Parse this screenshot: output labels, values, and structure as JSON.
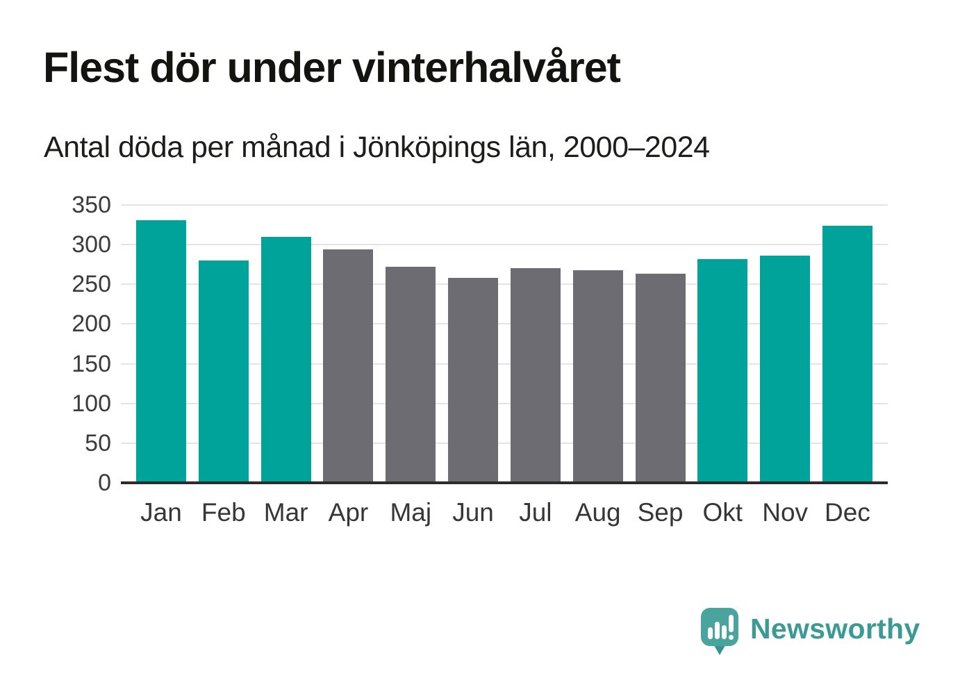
{
  "header": {
    "title": "Flest dör under vinterhalvåret",
    "subtitle": "Antal döda per månad i Jönköpings län, 2000–2024"
  },
  "chart_data": {
    "type": "bar",
    "title": "Flest dör under vinterhalvåret",
    "subtitle": "Antal döda per månad i Jönköpings län, 2000–2024",
    "categories": [
      "Jan",
      "Feb",
      "Mar",
      "Apr",
      "Maj",
      "Jun",
      "Jul",
      "Aug",
      "Sep",
      "Okt",
      "Nov",
      "Dec"
    ],
    "values": [
      331,
      280,
      310,
      294,
      272,
      258,
      270,
      268,
      263,
      282,
      286,
      324
    ],
    "bar_color_keys": [
      "teal",
      "teal",
      "teal",
      "gray",
      "gray",
      "gray",
      "gray",
      "gray",
      "gray",
      "teal",
      "teal",
      "teal"
    ],
    "colors": {
      "teal": "#00a39a",
      "gray": "#6d6c72"
    },
    "ylim": [
      0,
      350
    ],
    "ytick_step": 50,
    "grid": true,
    "gridline_color": "#e4e4e4",
    "axis_line_color": "#2c2c2c",
    "xlabel": "",
    "ylabel": "",
    "legend": "none"
  },
  "footer": {
    "brand": "Newsworthy",
    "brand_color": "#3b9b94",
    "logo": {
      "icon": "newsworthy-speech-bubble-chart-icon",
      "bubble_color": "#48a49d",
      "tail_color": "#37938c",
      "glyph_color": "#ffffff"
    }
  }
}
